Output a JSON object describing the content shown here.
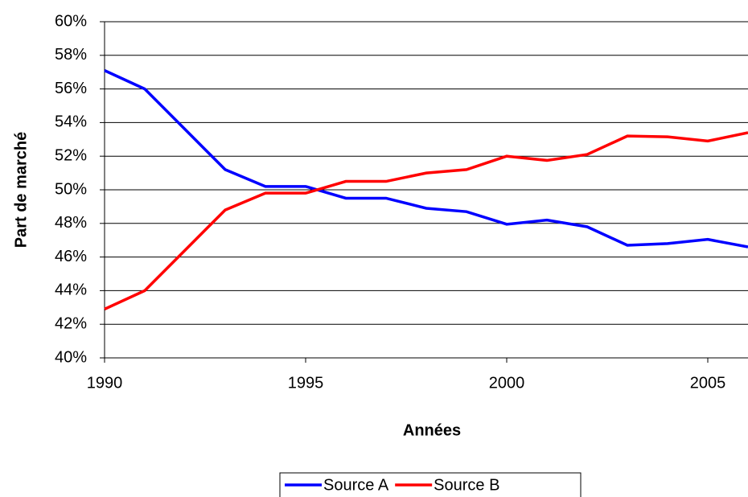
{
  "chart_data": {
    "type": "line",
    "x_label": "Années",
    "y_label": "Part de marché",
    "x": [
      1990,
      1991,
      1992,
      1993,
      1994,
      1995,
      1996,
      1997,
      1998,
      1999,
      2000,
      2001,
      2002,
      2003,
      2004,
      2005,
      2006
    ],
    "series": [
      {
        "name": "Source A",
        "color": "#0000ff",
        "values": [
          57.1,
          56.0,
          53.6,
          51.2,
          50.2,
          50.2,
          49.5,
          49.5,
          48.9,
          48.7,
          47.95,
          48.2,
          47.8,
          46.7,
          46.8,
          47.05,
          46.6
        ]
      },
      {
        "name": "Source B",
        "color": "#ff0000",
        "values": [
          42.9,
          44.0,
          46.4,
          48.8,
          49.8,
          49.8,
          50.5,
          50.5,
          51.0,
          51.2,
          52.0,
          51.75,
          52.1,
          53.2,
          53.15,
          52.9,
          53.4
        ]
      }
    ],
    "xlim": [
      1990,
      2006
    ],
    "xticks": [
      1990,
      1995,
      2000,
      2005
    ],
    "ylim": [
      40,
      60
    ],
    "yticks": [
      {
        "value": 40,
        "label": "40%"
      },
      {
        "value": 42,
        "label": "42%"
      },
      {
        "value": 44,
        "label": "44%"
      },
      {
        "value": 46,
        "label": "46%"
      },
      {
        "value": 48,
        "label": "48%"
      },
      {
        "value": 50,
        "label": "50%"
      },
      {
        "value": 52,
        "label": "52%"
      },
      {
        "value": 54,
        "label": "54%"
      },
      {
        "value": 56,
        "label": "56%"
      },
      {
        "value": 58,
        "label": "58%"
      },
      {
        "value": 60,
        "label": "60%"
      }
    ],
    "grid": true,
    "legend": "bottom"
  }
}
